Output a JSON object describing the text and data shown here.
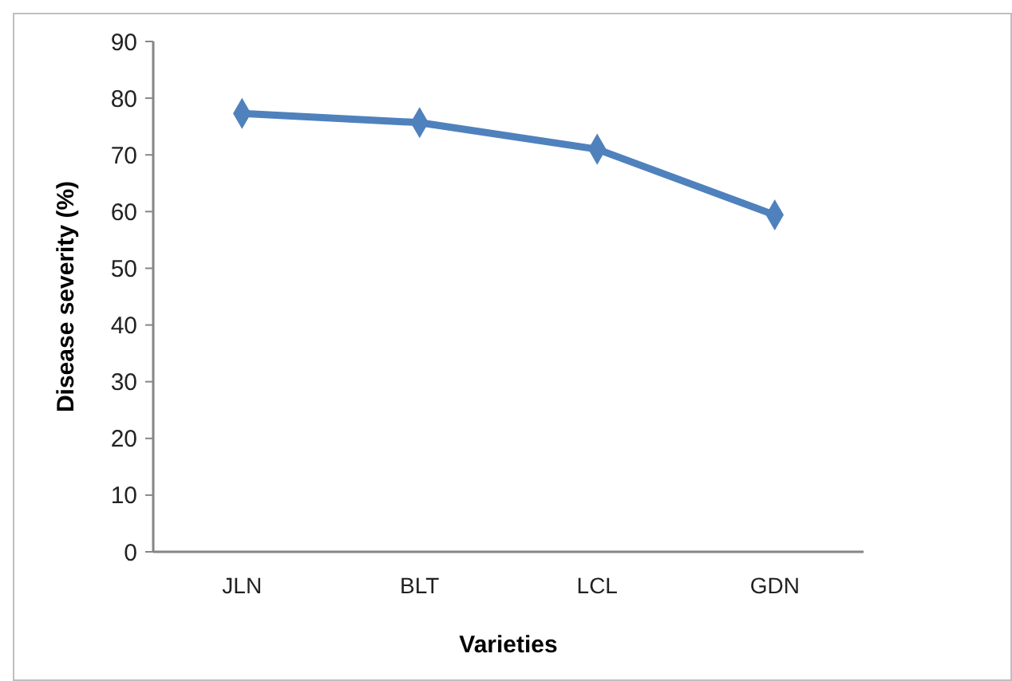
{
  "chart_data": {
    "type": "line",
    "xlabel": "Varieties",
    "ylabel": "Disease severity (%)",
    "categories": [
      "JLN",
      "BLT",
      "LCL",
      "GDN"
    ],
    "series": [
      {
        "color": "#4f81bd",
        "values": [
          77.3,
          75.7,
          71.0,
          59.4
        ]
      }
    ],
    "ylim": [
      0,
      90
    ],
    "yticks": [
      0,
      10,
      20,
      30,
      40,
      50,
      60,
      70,
      80,
      90
    ],
    "grid": false,
    "marker": "diamond",
    "line_style": "solid"
  }
}
